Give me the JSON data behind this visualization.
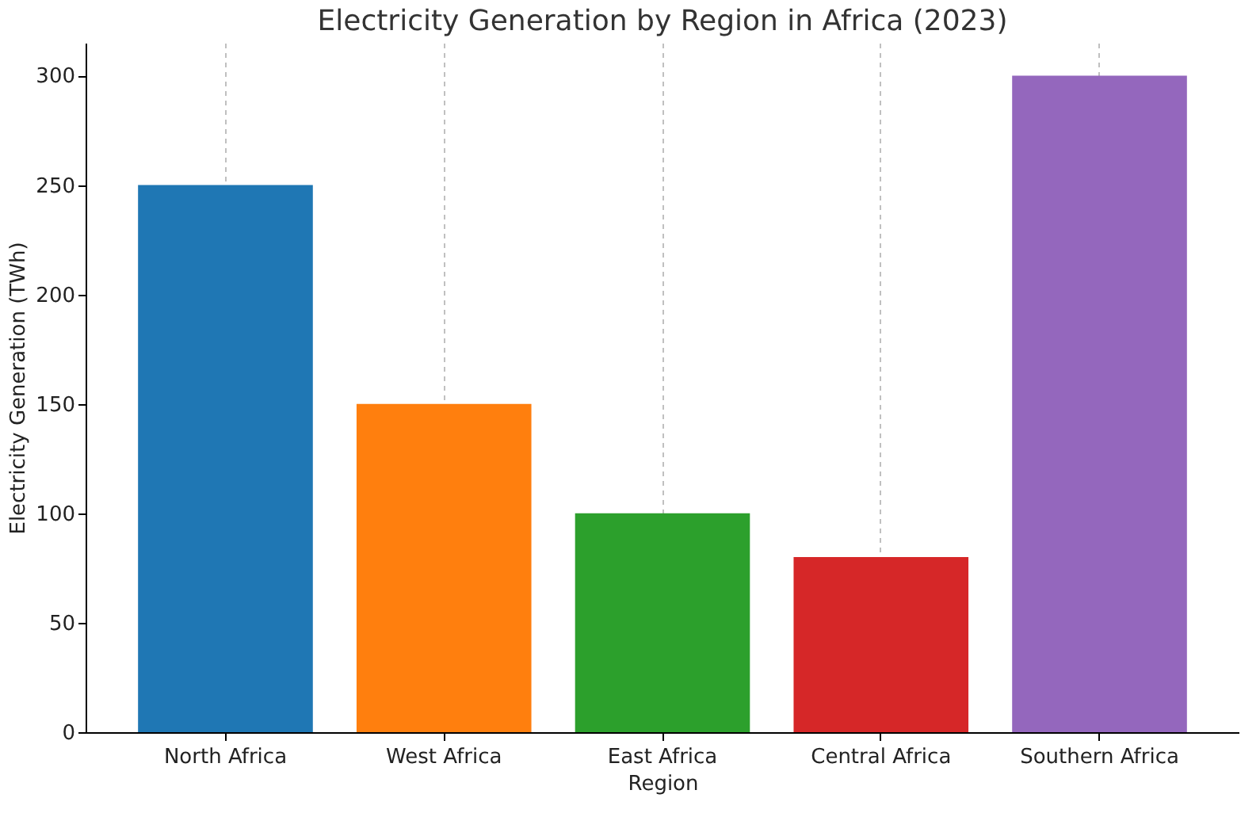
{
  "chart_data": {
    "type": "bar",
    "title": "Electricity Generation by Region in Africa (2023)",
    "xlabel": "Region",
    "ylabel": "Electricity Generation (TWh)",
    "categories": [
      "North Africa",
      "West Africa",
      "East Africa",
      "Central Africa",
      "Southern Africa"
    ],
    "values": [
      250,
      150,
      100,
      80,
      300
    ],
    "colors": [
      "#1f77b4",
      "#ff7f0e",
      "#2ca02c",
      "#d62728",
      "#9467bd"
    ],
    "ylim": [
      0,
      315
    ],
    "yticks": [
      0,
      50,
      100,
      150,
      200,
      250,
      300
    ],
    "grid": "x"
  }
}
